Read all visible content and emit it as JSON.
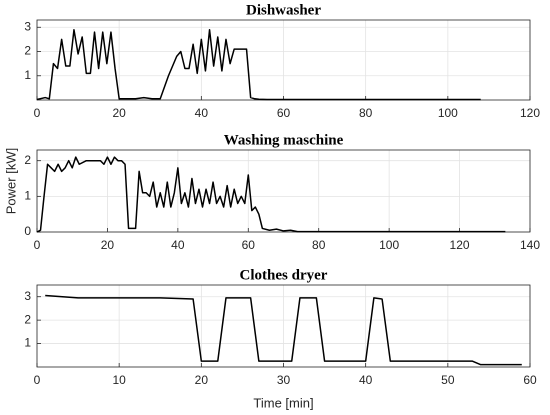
{
  "chart_data": [
    {
      "type": "line",
      "title": "Dishwasher",
      "color": "#000000",
      "grid": true,
      "x": [
        0,
        2,
        3,
        4,
        5,
        6,
        7,
        8,
        9,
        10,
        11,
        12,
        13,
        14,
        15,
        16,
        17,
        18,
        19,
        20,
        24,
        26,
        28,
        30,
        32,
        34,
        35,
        36,
        37,
        38,
        39,
        40,
        41,
        42,
        43,
        44,
        45,
        46,
        47,
        48,
        49,
        50,
        51,
        52,
        53,
        54,
        56,
        60,
        70,
        80,
        90,
        100,
        108
      ],
      "values": [
        0.02,
        0.1,
        0.05,
        1.5,
        1.3,
        2.5,
        1.4,
        1.4,
        2.9,
        1.9,
        2.6,
        1.1,
        1.1,
        2.8,
        1.3,
        2.8,
        1.5,
        2.8,
        1.3,
        0.05,
        0.05,
        0.1,
        0.05,
        0.05,
        1.0,
        1.8,
        2.0,
        1.3,
        1.3,
        2.3,
        1.1,
        2.5,
        1.2,
        2.9,
        1.4,
        2.6,
        1.2,
        2.5,
        1.5,
        2.1,
        2.1,
        2.1,
        2.1,
        0.1,
        0.05,
        0.03,
        0.02,
        0.02,
        0.02,
        0.02,
        0.02,
        0.02,
        0.02
      ],
      "xlim": [
        0,
        120
      ],
      "xticks": [
        0,
        20,
        40,
        60,
        80,
        100,
        120
      ],
      "ylim": [
        0,
        3.3
      ],
      "yticks": [
        1,
        2,
        3
      ]
    },
    {
      "type": "line",
      "title": "Washing maschine",
      "ylabel": "Power [kW]",
      "color": "#000000",
      "grid": true,
      "x": [
        0,
        1,
        2,
        3,
        4,
        5,
        6,
        7,
        8,
        9,
        10,
        11,
        12,
        14,
        16,
        18,
        19,
        20,
        21,
        22,
        23,
        24,
        25,
        26,
        27,
        28,
        29,
        30,
        31,
        32,
        33,
        34,
        35,
        36,
        37,
        38,
        39,
        40,
        41,
        42,
        43,
        44,
        45,
        46,
        47,
        48,
        49,
        50,
        51,
        52,
        53,
        54,
        55,
        56,
        57,
        58,
        59,
        60,
        61,
        62,
        63,
        64,
        66,
        68,
        70,
        72,
        74,
        80,
        100,
        120,
        133
      ],
      "values": [
        0,
        0.05,
        1,
        1.9,
        1.8,
        1.7,
        1.9,
        1.7,
        1.8,
        2.0,
        1.8,
        2.1,
        1.9,
        2.0,
        2.0,
        2.0,
        1.9,
        2.1,
        1.9,
        2.1,
        2.0,
        2.0,
        1.9,
        0.1,
        0.1,
        0.1,
        1.7,
        1.1,
        1.1,
        1.0,
        1.4,
        0.7,
        1.1,
        0.7,
        1.4,
        0.7,
        1.1,
        1.8,
        0.8,
        1.1,
        0.7,
        1.5,
        0.8,
        1.2,
        0.7,
        1.2,
        0.8,
        1.4,
        0.8,
        1.0,
        0.7,
        1.3,
        0.7,
        1.2,
        0.8,
        1.0,
        0.8,
        1.6,
        0.6,
        0.7,
        0.5,
        0.1,
        0.05,
        0.08,
        0.03,
        0.05,
        0.01,
        0.01,
        0.01,
        0.01,
        0.01
      ],
      "xlim": [
        0,
        140
      ],
      "xticks": [
        0,
        20,
        40,
        60,
        80,
        100,
        120,
        140
      ],
      "ylim": [
        0,
        2.3
      ],
      "yticks": [
        0,
        1,
        2
      ]
    },
    {
      "type": "line",
      "title": "Clothes dryer",
      "xlabel": "Time [min]",
      "color": "#000000",
      "grid": true,
      "x": [
        1,
        5,
        10,
        15,
        19,
        20,
        22,
        23,
        26,
        27,
        31,
        32,
        34,
        35,
        40,
        41,
        42,
        43,
        50,
        53,
        54,
        59
      ],
      "values": [
        3.05,
        2.95,
        2.95,
        2.95,
        2.9,
        0.25,
        0.25,
        2.95,
        2.95,
        0.25,
        0.25,
        2.95,
        2.95,
        0.25,
        0.25,
        2.95,
        2.9,
        0.25,
        0.25,
        0.25,
        0.1,
        0.1
      ],
      "xlim": [
        0,
        60
      ],
      "xticks": [
        0,
        10,
        20,
        30,
        40,
        50,
        60
      ],
      "ylim": [
        0,
        3.5
      ],
      "yticks": [
        1,
        2,
        3
      ]
    }
  ]
}
